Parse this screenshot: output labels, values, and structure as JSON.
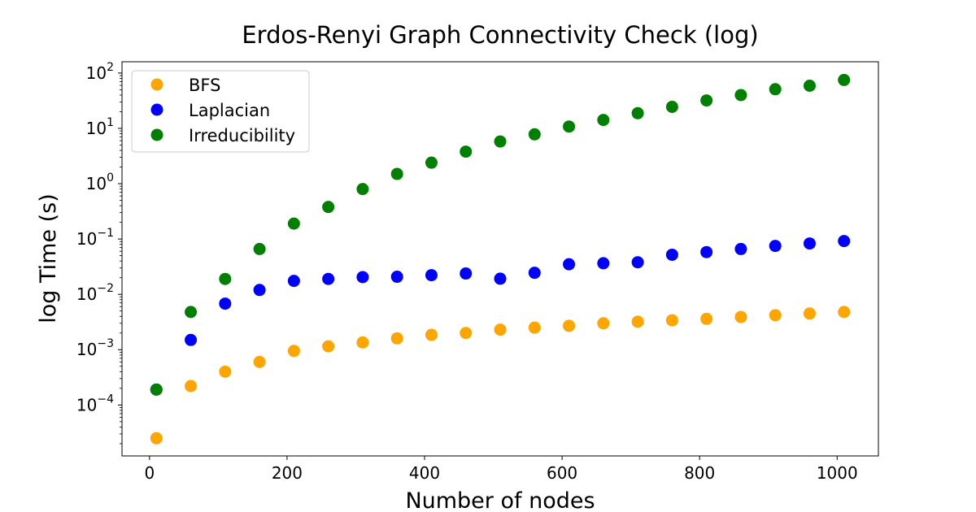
{
  "chart_data": {
    "type": "scatter",
    "title": "Erdos-Renyi Graph Connectivity Check (log)",
    "xlabel": "Number of nodes",
    "ylabel": "log Time (s)",
    "xlim": [
      -40,
      1060
    ],
    "ylim": [
      1.2e-05,
      160
    ],
    "yscale": "log",
    "grid": false,
    "legend_position": "top-left",
    "x_ticks": [
      0,
      200,
      400,
      600,
      800,
      1000
    ],
    "x_tick_labels": [
      "0",
      "200",
      "400",
      "600",
      "800",
      "1000"
    ],
    "y_ticks": [
      0.0001,
      0.001,
      0.01,
      0.1,
      1,
      10,
      100
    ],
    "y_tick_labels": [
      {
        "base": "10",
        "exp": "−4"
      },
      {
        "base": "10",
        "exp": "−3"
      },
      {
        "base": "10",
        "exp": "−2"
      },
      {
        "base": "10",
        "exp": "−1"
      },
      {
        "base": "10",
        "exp": "0"
      },
      {
        "base": "10",
        "exp": "1"
      },
      {
        "base": "10",
        "exp": "2"
      }
    ],
    "x": [
      10,
      60,
      110,
      160,
      210,
      260,
      310,
      360,
      410,
      460,
      510,
      560,
      610,
      660,
      710,
      760,
      810,
      860,
      910,
      960,
      1010
    ],
    "series": [
      {
        "name": "BFS",
        "color": "#ffa500",
        "values": [
          2.5e-05,
          0.00022,
          0.0004,
          0.0006,
          0.00095,
          0.00115,
          0.00135,
          0.0016,
          0.00185,
          0.002,
          0.0023,
          0.0025,
          0.0027,
          0.003,
          0.0032,
          0.0034,
          0.0036,
          0.0039,
          0.0042,
          0.0045,
          0.0048
        ]
      },
      {
        "name": "Laplacian",
        "color": "#0000ff",
        "values": [
          0.00019,
          0.0015,
          0.0068,
          0.012,
          0.0175,
          0.019,
          0.0205,
          0.0208,
          0.0222,
          0.0238,
          0.0192,
          0.0245,
          0.035,
          0.0365,
          0.038,
          0.052,
          0.058,
          0.066,
          0.075,
          0.083,
          0.092
        ]
      },
      {
        "name": "Irreducibility",
        "color": "#008000",
        "values": [
          0.00019,
          0.0048,
          0.019,
          0.066,
          0.19,
          0.38,
          0.8,
          1.5,
          2.4,
          3.8,
          5.8,
          7.8,
          10.8,
          14.2,
          18.8,
          24.5,
          32,
          40,
          51,
          59,
          75
        ]
      }
    ]
  }
}
